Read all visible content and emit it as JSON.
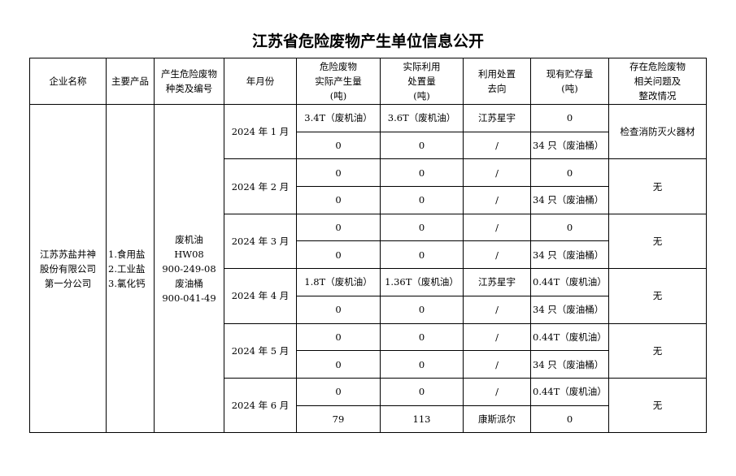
{
  "title": "江苏省危险废物产生单位信息公开",
  "headers": [
    "企业名称",
    "主要产品",
    "产生危险废物\n种类及编号",
    "年月份",
    "危险废物\n实际产生量\n(吨)",
    "实际利用\n处置量\n(吨)",
    "利用处置\n去向",
    "现有贮存量\n(吨)",
    "存在危险废物\n相关问题及\n整改情况"
  ],
  "company": "江苏苏盐井神\n股份有限公司\n第一分公司",
  "products": "1.食用盐\n2.工业盐\n3.氯化钙",
  "waste_types": "废机油\nHW08\n900-249-08\n废油桶\n900-041-49",
  "months": [
    {
      "month": "2024 年 1 月",
      "rows": [
        [
          "3.4T（废机油）",
          "3.6T（废机油）",
          "江苏星宇",
          "0"
        ],
        [
          "0",
          "0",
          "/",
          "34 只（废油桶）"
        ]
      ],
      "issue": "检查消防灭火器材"
    },
    {
      "month": "2024 年 2 月",
      "rows": [
        [
          "0",
          "0",
          "/",
          "0"
        ],
        [
          "0",
          "0",
          "/",
          "34 只（废油桶）"
        ]
      ],
      "issue": "无"
    },
    {
      "month": "2024 年 3 月",
      "rows": [
        [
          "0",
          "0",
          "/",
          "0"
        ],
        [
          "0",
          "0",
          "/",
          "34 只（废油桶）"
        ]
      ],
      "issue": "无"
    },
    {
      "month": "2024 年 4 月",
      "rows": [
        [
          "1.8T（废机油）",
          "1.36T（废机油）",
          "江苏星宇",
          "0.44T（废机油）"
        ],
        [
          "0",
          "0",
          "/",
          "34 只（废油桶）"
        ]
      ],
      "issue": "无"
    },
    {
      "month": "2024 年 5 月",
      "rows": [
        [
          "0",
          "0",
          "/",
          "0.44T（废机油）"
        ],
        [
          "0",
          "0",
          "/",
          "34 只（废油桶）"
        ]
      ],
      "issue": "无"
    },
    {
      "month": "2024 年 6 月",
      "rows": [
        [
          "0",
          "0",
          "/",
          "0.44T（废机油）"
        ],
        [
          "79",
          "113",
          "康斯派尔",
          "0"
        ]
      ],
      "issue": "无"
    }
  ]
}
